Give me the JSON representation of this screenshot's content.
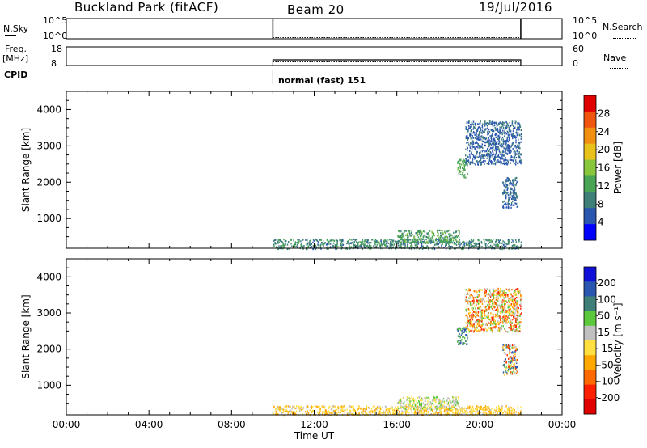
{
  "header": {
    "station": "Buckland Park (fitACF)",
    "beam": "Beam 20",
    "date": "19/Jul/2016"
  },
  "sky_panel": {
    "left_label": "N.Sky",
    "right_label": "N.Search",
    "left_ticks": [
      "10^5",
      "10^0"
    ],
    "right_ticks": [
      "10^5",
      "10^0"
    ]
  },
  "freq_panel": {
    "left_label_1": "Freq.",
    "left_label_2": "[MHz]",
    "right_label": "Nave",
    "left_ticks": [
      "18",
      "8"
    ],
    "right_ticks": [
      "60",
      "0"
    ]
  },
  "cpid_panel": {
    "label": "CPID",
    "mode": "normal (fast) 151"
  },
  "colors": {
    "power_scale": [
      "#0000ff",
      "#2a56b0",
      "#3e7f77",
      "#4aa556",
      "#88c63c",
      "#e8c21a",
      "#f08f10",
      "#f05510",
      "#e00000"
    ],
    "velocity_scale": [
      "#1010d8",
      "#2a56b0",
      "#3e7f77",
      "#5cc83c",
      "#c0c0c0",
      "#ffe040",
      "#ffa800",
      "#ff6a00",
      "#ff2000",
      "#e00000"
    ]
  },
  "chart_data": [
    {
      "type": "heatmap",
      "name": "power",
      "xlabel": "",
      "ylabel": "Slant Range [km]",
      "x_ticks": [
        "00:00",
        "04:00",
        "08:00",
        "12:00",
        "16:00",
        "20:00",
        "00:00"
      ],
      "y_ticks": [
        1000,
        2000,
        3000,
        4000
      ],
      "ylim": [
        180,
        4500
      ],
      "xlim_hours": [
        0,
        24
      ],
      "colorbar_label": "Power [dB]",
      "colorbar_ticks": [
        4,
        8,
        12,
        16,
        20,
        24,
        28
      ],
      "colorbar_range": [
        0,
        30
      ],
      "data_window_hours": [
        10,
        22
      ],
      "regions": [
        {
          "t": [
            10.0,
            22.0
          ],
          "r": [
            180,
            450
          ],
          "v": [
            6,
            12
          ]
        },
        {
          "t": [
            16.0,
            19.0
          ],
          "r": [
            350,
            700
          ],
          "v": [
            8,
            14
          ]
        },
        {
          "t": [
            18.9,
            19.4
          ],
          "r": [
            2150,
            2650
          ],
          "v": [
            10,
            14
          ]
        },
        {
          "t": [
            21.1,
            21.8
          ],
          "r": [
            1300,
            2150
          ],
          "v": [
            4,
            8
          ]
        },
        {
          "t": [
            19.3,
            22.0
          ],
          "r": [
            2500,
            3700
          ],
          "v": [
            4,
            8
          ]
        }
      ]
    },
    {
      "type": "heatmap",
      "name": "velocity",
      "xlabel": "Time UT",
      "ylabel": "Slant Range [km]",
      "x_ticks": [
        "00:00",
        "04:00",
        "08:00",
        "12:00",
        "16:00",
        "20:00",
        "00:00"
      ],
      "y_ticks": [
        1000,
        2000,
        3000,
        4000
      ],
      "ylim": [
        180,
        4500
      ],
      "xlim_hours": [
        0,
        24
      ],
      "colorbar_label": "Velocity [m s⁻¹]",
      "colorbar_ticks": [
        "200",
        "100",
        "50",
        "15",
        "-15",
        "-50",
        "-100",
        "-200"
      ],
      "colorbar_range": [
        -250,
        250
      ],
      "data_window_hours": [
        10,
        22
      ],
      "regions": [
        {
          "t": [
            10.0,
            22.0
          ],
          "r": [
            180,
            450
          ],
          "v": [
            -100,
            15
          ]
        },
        {
          "t": [
            16.0,
            19.0
          ],
          "r": [
            350,
            700
          ],
          "v": [
            -50,
            100
          ]
        },
        {
          "t": [
            18.9,
            19.4
          ],
          "r": [
            2150,
            2650
          ],
          "v": [
            50,
            200
          ]
        },
        {
          "t": [
            21.1,
            21.8
          ],
          "r": [
            1300,
            2150
          ],
          "v": [
            -200,
            200
          ]
        },
        {
          "t": [
            19.3,
            22.0
          ],
          "r": [
            2500,
            3700
          ],
          "v": [
            -200,
            100
          ]
        }
      ]
    }
  ]
}
